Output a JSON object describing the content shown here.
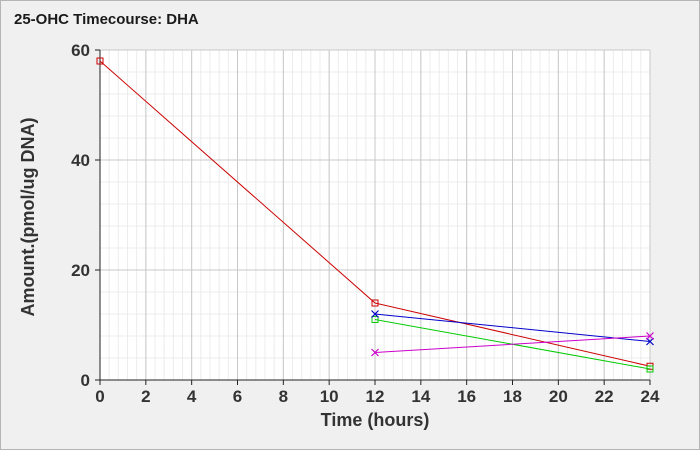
{
  "chart_data": {
    "type": "line",
    "title": "25-OHC Timecourse: DHA",
    "xlabel": "Time (hours)",
    "ylabel": "Amount.(pmol/ug DNA)",
    "xlim": [
      0,
      24
    ],
    "ylim": [
      0,
      60
    ],
    "xticks": [
      0,
      2,
      4,
      6,
      8,
      10,
      12,
      14,
      16,
      18,
      20,
      22,
      24
    ],
    "yticks": [
      0,
      20,
      40,
      60
    ],
    "grid": true,
    "legend": "none",
    "series": [
      {
        "color": "#cc0000",
        "marker": "square",
        "points": [
          [
            0,
            58
          ],
          [
            12,
            14
          ],
          [
            24,
            2.5
          ]
        ]
      },
      {
        "color": "#00cc00",
        "marker": "square",
        "points": [
          [
            12,
            11
          ],
          [
            24,
            2
          ]
        ]
      },
      {
        "color": "#0000cc",
        "marker": "x",
        "points": [
          [
            12,
            12
          ],
          [
            24,
            7
          ]
        ]
      },
      {
        "color": "#cc00cc",
        "marker": "x",
        "points": [
          [
            12,
            5
          ],
          [
            24,
            8
          ]
        ]
      }
    ]
  }
}
